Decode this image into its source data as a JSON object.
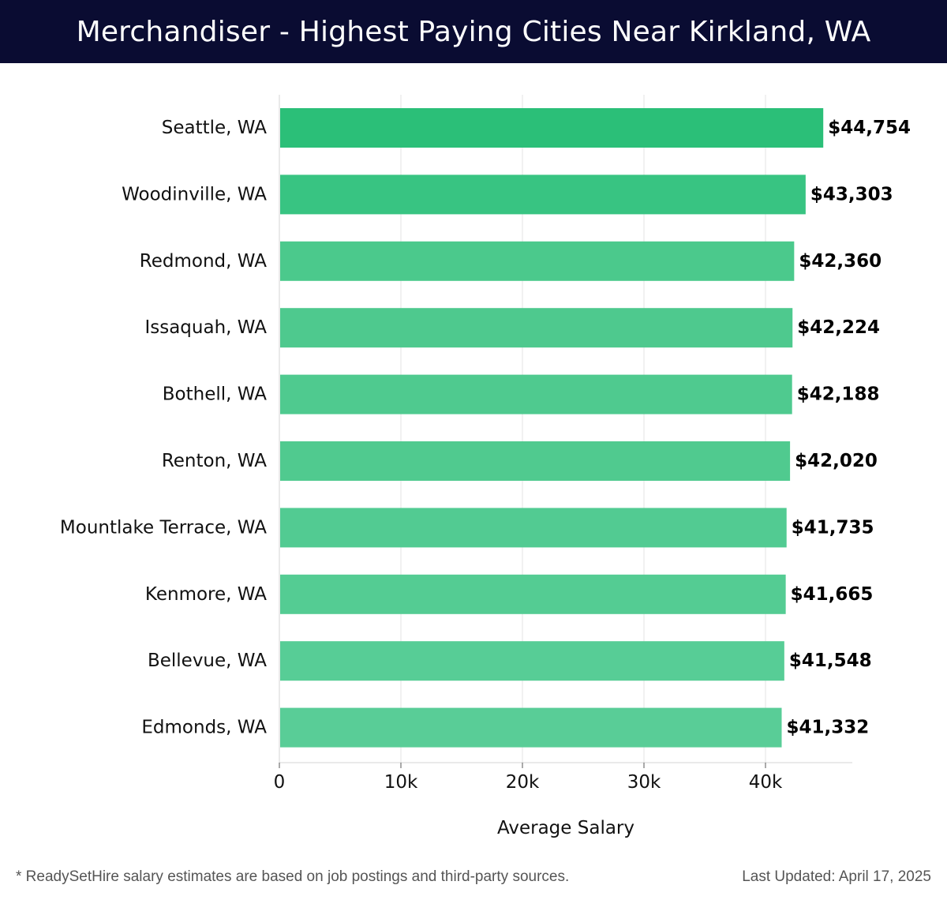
{
  "header": {
    "title": "Merchandiser - Highest Paying Cities Near Kirkland, WA"
  },
  "chart_data": {
    "type": "bar",
    "orientation": "horizontal",
    "title": "Merchandiser - Highest Paying Cities Near Kirkland, WA",
    "xlabel": "Average Salary",
    "ylabel": "",
    "xlim": [
      0,
      47000
    ],
    "x_ticks": [
      0,
      10000,
      20000,
      30000,
      40000
    ],
    "x_tick_labels": [
      "0",
      "10k",
      "20k",
      "30k",
      "40k"
    ],
    "grid": "vertical",
    "categories": [
      "Seattle, WA",
      "Woodinville, WA",
      "Redmond, WA",
      "Issaquah, WA",
      "Bothell, WA",
      "Renton, WA",
      "Mountlake Terrace, WA",
      "Kenmore, WA",
      "Bellevue, WA",
      "Edmonds, WA"
    ],
    "values": [
      44754,
      43303,
      42360,
      42224,
      42188,
      42020,
      41735,
      41665,
      41548,
      41332
    ],
    "value_labels": [
      "$44,754",
      "$43,303",
      "$42,360",
      "$42,224",
      "$42,188",
      "$42,020",
      "$41,735",
      "$41,665",
      "$41,548",
      "$41,332"
    ],
    "bar_colors": [
      "#2bbf78",
      "#38c482",
      "#4bc98c",
      "#4ec98e",
      "#4fca8f",
      "#50ca8f",
      "#52cb92",
      "#54cc93",
      "#57cd96",
      "#59cd97"
    ]
  },
  "footer": {
    "note": "* ReadySetHire salary estimates are based on job postings and third-party sources.",
    "updated_label": "Last Updated:",
    "updated_date": "April 17, 2025"
  }
}
